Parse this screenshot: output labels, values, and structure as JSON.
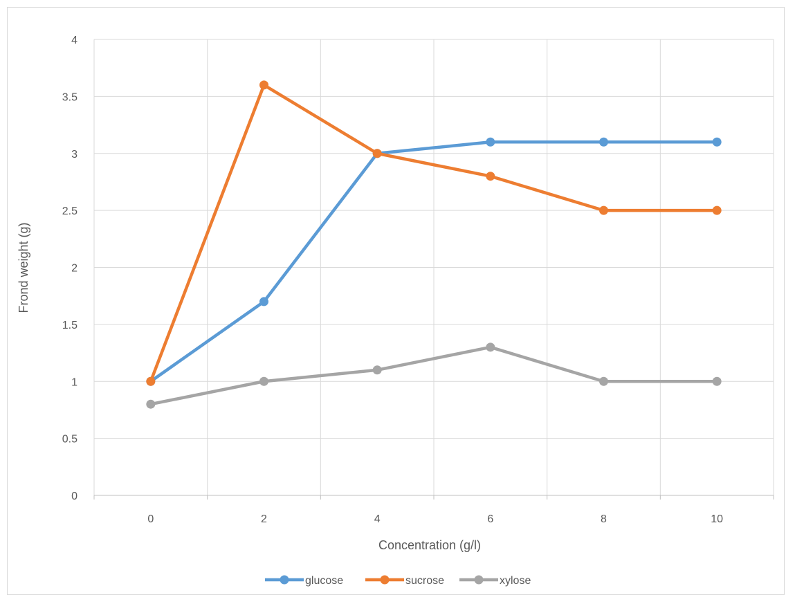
{
  "chart_data": {
    "type": "line",
    "title": "",
    "xlabel": "Concentration (g/l)",
    "ylabel": "Frond weight (g)",
    "x": [
      0,
      2,
      4,
      6,
      8,
      10
    ],
    "x_tick_labels": [
      "0",
      "2",
      "4",
      "6",
      "8",
      "10"
    ],
    "ylim": [
      0,
      4
    ],
    "y_tick_labels": [
      "0",
      "0.5",
      "1",
      "1.5",
      "2",
      "2.5",
      "3",
      "3.5",
      "4"
    ],
    "grid": true,
    "legend_position": "bottom",
    "series": [
      {
        "name": "glucose",
        "color": "#5b9bd5",
        "values": [
          1.0,
          1.7,
          3.0,
          3.1,
          3.1,
          3.1
        ]
      },
      {
        "name": "sucrose",
        "color": "#ed7d31",
        "values": [
          1.0,
          3.6,
          3.0,
          2.8,
          2.5,
          2.5
        ]
      },
      {
        "name": "xylose",
        "color": "#a5a5a5",
        "values": [
          0.8,
          1.0,
          1.1,
          1.3,
          1.0,
          1.0
        ]
      }
    ]
  }
}
